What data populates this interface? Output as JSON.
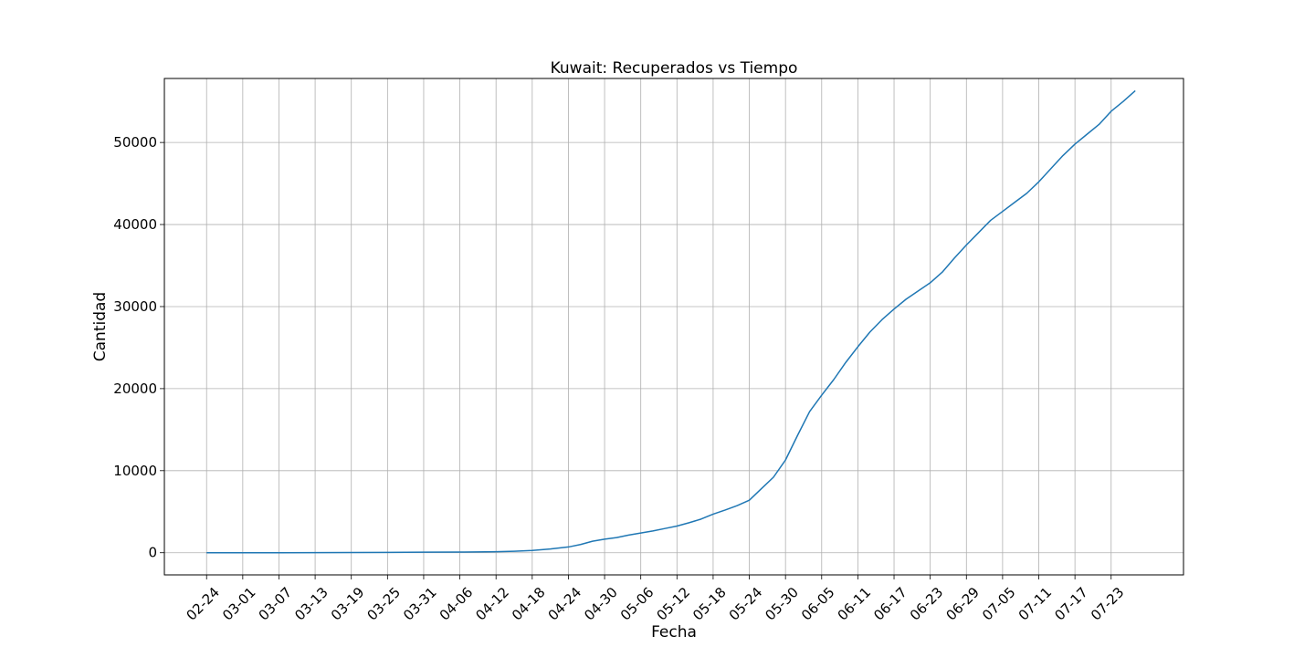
{
  "chart_data": {
    "type": "line",
    "title": "Kuwait: Recuperados vs Tiempo",
    "xlabel": "Fecha",
    "ylabel": "Cantidad",
    "grid": true,
    "legend": "none",
    "x_ticks": [
      "02-24",
      "03-01",
      "03-07",
      "03-13",
      "03-19",
      "03-25",
      "03-31",
      "04-06",
      "04-12",
      "04-18",
      "04-24",
      "04-30",
      "05-06",
      "05-12",
      "05-18",
      "05-24",
      "05-30",
      "06-05",
      "06-11",
      "06-17",
      "06-23",
      "06-29",
      "07-05",
      "07-11",
      "07-17",
      "07-23"
    ],
    "y_ticks": [
      0,
      10000,
      20000,
      30000,
      40000,
      50000
    ],
    "ylim": [
      -2700,
      57800
    ],
    "xlim": [
      "02-17",
      "08-04"
    ],
    "colors": {
      "line": "#1f77b4",
      "grid": "#b0b0b0",
      "axes": "#000000"
    },
    "series": [
      {
        "x": [
          "02-24",
          "03-01",
          "03-07",
          "03-13",
          "03-19",
          "03-25",
          "03-31",
          "04-06",
          "04-12",
          "04-15",
          "04-18",
          "04-21",
          "04-24",
          "04-26",
          "04-28",
          "04-30",
          "05-02",
          "05-04",
          "05-06",
          "05-08",
          "05-10",
          "05-12",
          "05-14",
          "05-16",
          "05-18",
          "05-20",
          "05-22",
          "05-24",
          "05-26",
          "05-28",
          "05-30",
          "06-01",
          "06-03",
          "06-05",
          "06-07",
          "06-09",
          "06-11",
          "06-13",
          "06-15",
          "06-17",
          "06-19",
          "06-21",
          "06-23",
          "06-25",
          "06-27",
          "06-29",
          "07-01",
          "07-03",
          "07-05",
          "07-07",
          "07-09",
          "07-11",
          "07-13",
          "07-15",
          "07-17",
          "07-19",
          "07-21",
          "07-23",
          "07-25",
          "07-27"
        ],
        "values": [
          0,
          0,
          0,
          5,
          20,
          40,
          60,
          80,
          120,
          180,
          280,
          450,
          700,
          1000,
          1400,
          1650,
          1850,
          2150,
          2400,
          2650,
          2950,
          3250,
          3650,
          4100,
          4700,
          5200,
          5750,
          6400,
          7800,
          9200,
          11300,
          14300,
          17200,
          19200,
          21100,
          23200,
          25100,
          26900,
          28400,
          29700,
          30900,
          31900,
          32900,
          34200,
          35900,
          37500,
          39000,
          40500,
          41600,
          42700,
          43800,
          45200,
          46800,
          48400,
          49800,
          51000,
          52200,
          53800,
          55000,
          56300
        ]
      }
    ]
  }
}
